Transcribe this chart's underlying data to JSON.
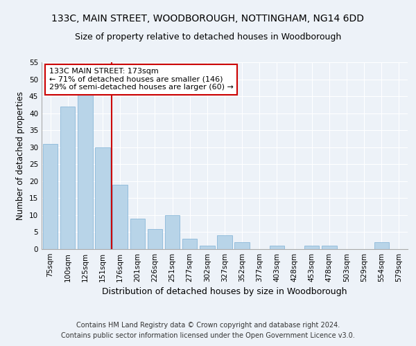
{
  "title": "133C, MAIN STREET, WOODBOROUGH, NOTTINGHAM, NG14 6DD",
  "subtitle": "Size of property relative to detached houses in Woodborough",
  "xlabel": "Distribution of detached houses by size in Woodborough",
  "ylabel": "Number of detached properties",
  "categories": [
    "75sqm",
    "100sqm",
    "125sqm",
    "151sqm",
    "176sqm",
    "201sqm",
    "226sqm",
    "251sqm",
    "277sqm",
    "302sqm",
    "327sqm",
    "352sqm",
    "377sqm",
    "403sqm",
    "428sqm",
    "453sqm",
    "478sqm",
    "503sqm",
    "529sqm",
    "554sqm",
    "579sqm"
  ],
  "values": [
    31,
    42,
    46,
    30,
    19,
    9,
    6,
    10,
    3,
    1,
    4,
    2,
    0,
    1,
    0,
    1,
    1,
    0,
    0,
    2,
    0
  ],
  "bar_color": "#b8d4e8",
  "bar_edgecolor": "#7bafd4",
  "annotation_line_color": "#cc0000",
  "annotation_box_text": "133C MAIN STREET: 173sqm\n← 71% of detached houses are smaller (146)\n29% of semi-detached houses are larger (60) →",
  "annotation_box_facecolor": "white",
  "annotation_box_edgecolor": "#cc0000",
  "ylim": [
    0,
    55
  ],
  "yticks": [
    0,
    5,
    10,
    15,
    20,
    25,
    30,
    35,
    40,
    45,
    50,
    55
  ],
  "footer_line1": "Contains HM Land Registry data © Crown copyright and database right 2024.",
  "footer_line2": "Contains public sector information licensed under the Open Government Licence v3.0.",
  "bg_color": "#edf2f8",
  "plot_bg_color": "#edf2f8",
  "grid_color": "white",
  "title_fontsize": 10,
  "subtitle_fontsize": 9,
  "xlabel_fontsize": 9,
  "ylabel_fontsize": 8.5,
  "tick_fontsize": 7.5,
  "footer_fontsize": 7,
  "annotation_fontsize": 8
}
